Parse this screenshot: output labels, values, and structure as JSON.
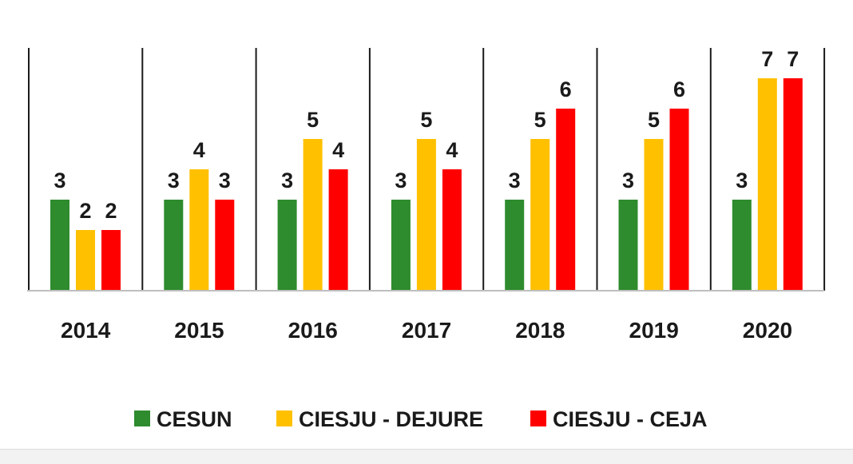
{
  "chart_data": {
    "type": "bar",
    "title": "",
    "xlabel": "",
    "ylabel": "",
    "ylim": [
      0,
      8
    ],
    "grid": false,
    "legend_position": "bottom",
    "categories": [
      "2014",
      "2015",
      "2016",
      "2017",
      "2018",
      "2019",
      "2020"
    ],
    "series": [
      {
        "name": "CESUN",
        "color": "#2e8b2e",
        "values": [
          3,
          3,
          3,
          3,
          3,
          3,
          3
        ]
      },
      {
        "name": "CIESJU - DEJURE",
        "color": "#ffc000",
        "values": [
          2,
          4,
          5,
          5,
          5,
          5,
          7
        ]
      },
      {
        "name": "CIESJU - CEJA",
        "color": "#ff0000",
        "values": [
          2,
          3,
          4,
          4,
          6,
          6,
          7
        ]
      }
    ]
  }
}
